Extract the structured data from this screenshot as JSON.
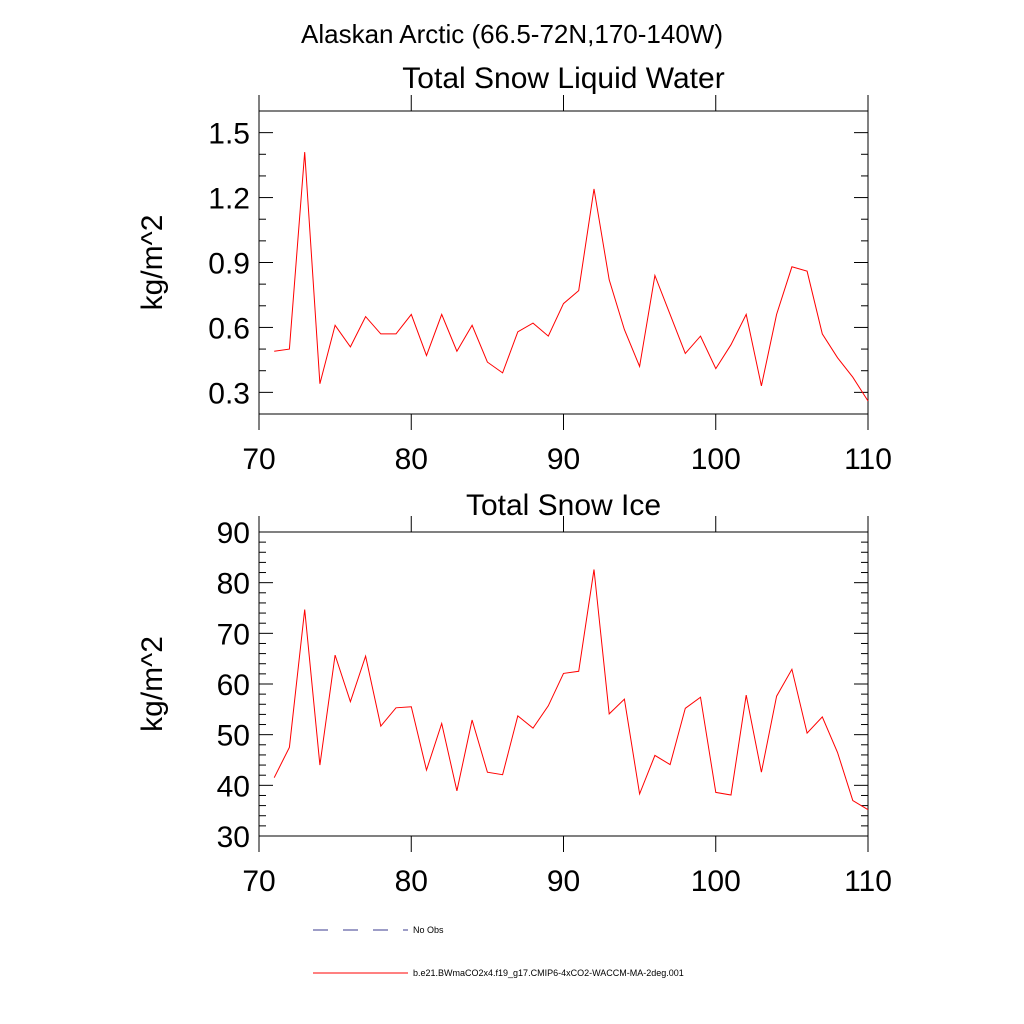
{
  "figure": {
    "suptitle": "Alaskan Arctic (66.5-72N,170-140W)"
  },
  "legend": {
    "entries": [
      {
        "label": "No Obs",
        "color": "#3b3b8f",
        "dash": "dashed"
      },
      {
        "label": "b.e21.BWmaCO2x4.f19_g17.CMIP6-4xCO2-WACCM-MA-2deg.001",
        "color": "#ff0000",
        "dash": "solid"
      }
    ]
  },
  "chart_data": [
    {
      "type": "line",
      "title": "Total Snow Liquid Water",
      "xlabel": "",
      "ylabel": "kg/m^2",
      "xlim": [
        70,
        110
      ],
      "ylim": [
        0.2,
        1.6
      ],
      "xticks": [
        70,
        80,
        90,
        100,
        110
      ],
      "xtick_labels": [
        "70",
        "80",
        "90",
        "100",
        "110"
      ],
      "yticks": [
        0.3,
        0.6,
        0.9,
        1.2,
        1.5
      ],
      "ytick_labels": [
        "0.3",
        "0.6",
        "0.9",
        "1.2",
        "1.5"
      ],
      "grid": false,
      "series": [
        {
          "name": "b.e21.BWmaCO2x4.f19_g17.CMIP6-4xCO2-WACCM-MA-2deg.001",
          "color": "#ff0000",
          "x": [
            71,
            72,
            73,
            74,
            75,
            76,
            77,
            78,
            79,
            80,
            81,
            82,
            83,
            84,
            85,
            86,
            87,
            88,
            89,
            90,
            91,
            92,
            93,
            94,
            95,
            96,
            97,
            98,
            99,
            100,
            101,
            102,
            103,
            104,
            105,
            106,
            107,
            108,
            109,
            110
          ],
          "values": [
            0.49,
            0.5,
            1.41,
            0.34,
            0.61,
            0.51,
            0.65,
            0.57,
            0.57,
            0.66,
            0.47,
            0.66,
            0.49,
            0.61,
            0.44,
            0.39,
            0.58,
            0.62,
            0.56,
            0.71,
            0.77,
            1.24,
            0.82,
            0.59,
            0.42,
            0.84,
            0.66,
            0.48,
            0.56,
            0.41,
            0.52,
            0.66,
            0.33,
            0.66,
            0.88,
            0.86,
            0.57,
            0.46,
            0.37,
            0.26
          ]
        }
      ]
    },
    {
      "type": "line",
      "title": "Total Snow Ice",
      "xlabel": "",
      "ylabel": "kg/m^2",
      "xlim": [
        70,
        110
      ],
      "ylim": [
        30,
        90
      ],
      "xticks": [
        70,
        80,
        90,
        100,
        110
      ],
      "xtick_labels": [
        "70",
        "80",
        "90",
        "100",
        "110"
      ],
      "yticks": [
        30,
        40,
        50,
        60,
        70,
        80,
        90
      ],
      "ytick_labels": [
        "30",
        "40",
        "50",
        "60",
        "70",
        "80",
        "90"
      ],
      "grid": false,
      "series": [
        {
          "name": "b.e21.BWmaCO2x4.f19_g17.CMIP6-4xCO2-WACCM-MA-2deg.001",
          "color": "#ff0000",
          "x": [
            71,
            72,
            73,
            74,
            75,
            76,
            77,
            78,
            79,
            80,
            81,
            82,
            83,
            84,
            85,
            86,
            87,
            88,
            89,
            90,
            91,
            92,
            93,
            94,
            95,
            96,
            97,
            98,
            99,
            100,
            101,
            102,
            103,
            104,
            105,
            106,
            107,
            108,
            109,
            110
          ],
          "values": [
            41.5,
            47.5,
            74.7,
            44.0,
            65.7,
            56.5,
            65.5,
            51.7,
            55.3,
            55.5,
            43.0,
            52.2,
            38.9,
            52.9,
            42.6,
            42.1,
            53.7,
            51.3,
            55.7,
            62.1,
            62.5,
            82.6,
            54.1,
            57.0,
            38.3,
            45.9,
            44.1,
            55.2,
            57.4,
            38.6,
            38.1,
            57.8,
            42.6,
            57.6,
            62.9,
            50.3,
            53.5,
            46.5,
            37.0,
            35.2
          ]
        }
      ]
    }
  ]
}
